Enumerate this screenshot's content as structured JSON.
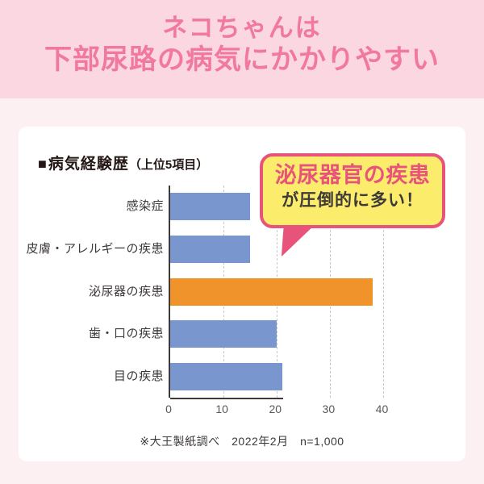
{
  "header": {
    "line1": "ネコちゃんは",
    "line2": "下部尿路の病気にかかりやすい"
  },
  "chart": {
    "title_bullet": "■",
    "title_main": "病気経験歴",
    "title_sub": "（上位5項目）",
    "callout": {
      "line1": "泌尿器官の疾患",
      "line2": "が圧倒的に多い！"
    },
    "footnote": "※大王製紙調べ　2022年2月　n=1,000"
  },
  "chart_data": {
    "type": "bar",
    "orientation": "horizontal",
    "title": "■病気経験歴（上位5項目）",
    "categories": [
      "感染症",
      "皮膚・アレルギーの疾患",
      "泌尿器の疾患",
      "歯・口の疾患",
      "目の疾患"
    ],
    "values": [
      15,
      15,
      38,
      20,
      21
    ],
    "highlight_index": 2,
    "annotation": "泌尿器官の疾患が圧倒的に多い！",
    "source": "※大王製紙調べ　2022年2月　n=1,000",
    "xticks": [
      0,
      10,
      20,
      30,
      40
    ],
    "xlim": [
      0,
      42.5
    ],
    "grid": "vertical-dashed",
    "legend": "none",
    "bar_color": "#7A96CE",
    "highlight_color": "#F0932A"
  },
  "colors": {
    "page_background": "#FCF0F3",
    "header_band": "#FAD7E1",
    "header_text": "#F1789F",
    "card_background": "#FFFFFF",
    "title_text": "#231815",
    "bar_blue": "#7A96CE",
    "bar_orange": "#F0932A",
    "callout_border": "#E8537B",
    "callout_fill": "#FBEC6C",
    "axis": "#3E3A39",
    "gridline": "#C9C9C9",
    "tick_text": "#595757",
    "label_text": "#3E3A39"
  }
}
